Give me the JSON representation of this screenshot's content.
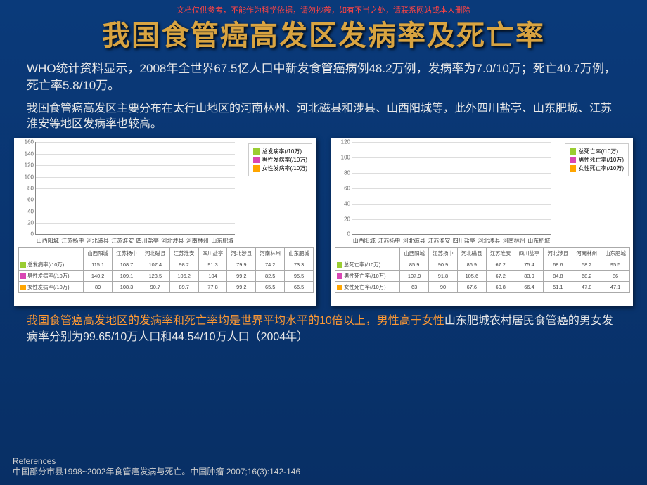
{
  "disclaimer": "文档仅供参考，不能作为科学依据，请勿抄袭，如有不当之处，请联系网站或本人删除",
  "title": "我国食管癌高发区发病率及死亡率",
  "para1": "WHO统计资料显示，2008年全世界67.5亿人口中新发食管癌病例48.2万例，发病率为7.0/10万；死亡40.7万例，死亡率5.8/10万。",
  "para2": "我国食管癌高发区主要分布在太行山地区的河南林州、河北磁县和涉县、山西阳城等，此外四川盐亭、山东肥城、江苏淮安等地区发病率也较高。",
  "colors": {
    "total": "#9acd32",
    "male": "#d946b4",
    "female": "#ffa500"
  },
  "chart1": {
    "ymax": 160,
    "ystep": 20,
    "categories": [
      "山西阳城",
      "江苏扬中",
      "河北磁县",
      "江苏淮安",
      "四川盐亭",
      "河北涉县",
      "河南林州",
      "山东肥城"
    ],
    "series": [
      {
        "label": "总发病率(/10万)",
        "color": "#9acd32",
        "values": [
          115.1,
          108.7,
          107.4,
          98.2,
          91.3,
          79.9,
          74.2,
          73.3
        ]
      },
      {
        "label": "男性发病率(/10万)",
        "color": "#d946b4",
        "values": [
          140.2,
          109.1,
          123.5,
          106.2,
          104,
          99.2,
          82.5,
          95.5
        ]
      },
      {
        "label": "女性发病率(/10万)",
        "color": "#ffa500",
        "values": [
          89,
          108.3,
          90.7,
          89.7,
          77.8,
          99.2,
          65.5,
          66.5
        ]
      }
    ]
  },
  "chart2": {
    "ymax": 120,
    "ystep": 20,
    "categories": [
      "山西阳城",
      "江苏扬中",
      "河北磁县",
      "江苏淮安",
      "四川盐亭",
      "河北涉县",
      "河南林州",
      "山东肥城"
    ],
    "series": [
      {
        "label": "总死亡率(/10万)",
        "color": "#9acd32",
        "values": [
          85.9,
          90.9,
          86.9,
          67.2,
          75.4,
          68.6,
          58.2,
          95.5
        ]
      },
      {
        "label": "男性死亡率(/10万)",
        "color": "#d946b4",
        "values": [
          107.9,
          91.8,
          105.6,
          67.2,
          83.9,
          84.8,
          68.2,
          86
        ]
      },
      {
        "label": "女性死亡率(/10万)",
        "color": "#ffa500",
        "values": [
          63,
          90,
          67.6,
          60.8,
          66.4,
          51.1,
          47.8,
          47.1
        ]
      }
    ]
  },
  "conclusion_hl": "我国食管癌高发地区的发病率和死亡率均是世界平均水平的10倍以上，男性高于女性",
  "conclusion_rest": "山东肥城农村居民食管癌的男女发病率分别为99.65/10万人口和44.54/10万人口（2004年）",
  "refs_title": "References",
  "refs_body": "中国部分市县1998~2002年食管癌发病与死亡。中国肿瘤 2007;16(3):142-146"
}
